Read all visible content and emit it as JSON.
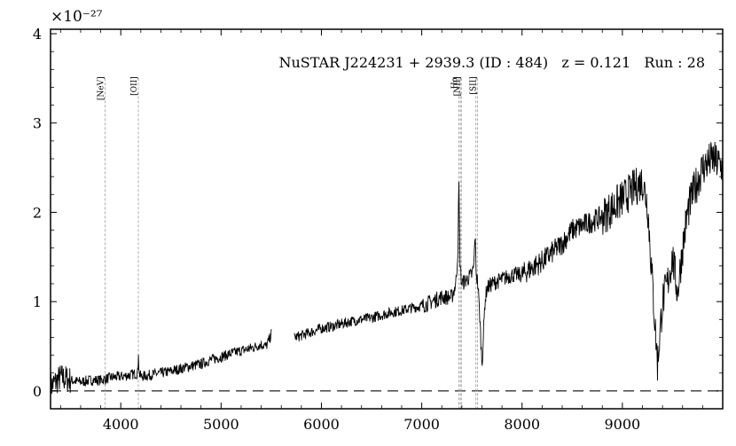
{
  "chart_data": {
    "type": "line",
    "title": "NuSTAR J224231 + 2939.3 (ID : 484)   z = 0.121   Run : 28",
    "xlabel": "",
    "ylabel": "",
    "y_scale_label": "×10⁻²⁷",
    "xlim": [
      3300,
      10000
    ],
    "ylim": [
      -0.2,
      4.05
    ],
    "x_ticks": [
      4000,
      5000,
      6000,
      7000,
      8000,
      9000
    ],
    "y_ticks": [
      0,
      1,
      2,
      3,
      4
    ],
    "grid": false,
    "zero_line": 0,
    "gap": [
      5500,
      5730
    ],
    "emission_lines": [
      {
        "label": "[NeV]",
        "x": 3843
      },
      {
        "label": "[OII]",
        "x": 4175
      },
      {
        "label": "Hα",
        "x": 7370
      },
      {
        "label": "",
        "x": 7385
      },
      {
        "label": "[NII]",
        "x": 7395
      },
      {
        "label": "",
        "x": 7540
      },
      {
        "label": "[SII]",
        "x": 7555
      }
    ],
    "series": [
      {
        "x": [
          3300,
          3400,
          3500,
          3600,
          3700,
          3800,
          3900,
          4000,
          4100,
          4170,
          4176,
          4182,
          4200,
          4300,
          4400,
          4500,
          4600,
          4700,
          4800,
          4900,
          5000,
          5100,
          5200,
          5300,
          5400,
          5450,
          5490,
          5500,
          5730,
          5800,
          5900,
          6000,
          6100,
          6200,
          6300,
          6400,
          6500,
          6600,
          6700,
          6800,
          6900,
          7000,
          7100,
          7200,
          7300,
          7340,
          7360,
          7370,
          7380,
          7390,
          7400,
          7450,
          7500,
          7520,
          7530,
          7545,
          7560,
          7580,
          7600,
          7610,
          7630,
          7650,
          7700,
          7800,
          7900,
          8000,
          8100,
          8200,
          8300,
          8400,
          8500,
          8600,
          8700,
          8800,
          8900,
          9000,
          9100,
          9200,
          9250,
          9300,
          9350,
          9400,
          9450,
          9500,
          9550,
          9600,
          9650,
          9700,
          9800,
          9900,
          10000
        ],
        "values": [
          0.05,
          0.15,
          0.12,
          0.1,
          0.12,
          0.12,
          0.15,
          0.16,
          0.18,
          0.2,
          0.45,
          0.2,
          0.16,
          0.18,
          0.2,
          0.22,
          0.25,
          0.28,
          0.3,
          0.35,
          0.38,
          0.42,
          0.45,
          0.48,
          0.52,
          0.5,
          0.6,
          0.65,
          0.6,
          0.62,
          0.66,
          0.7,
          0.72,
          0.75,
          0.78,
          0.8,
          0.82,
          0.85,
          0.88,
          0.9,
          0.93,
          0.95,
          1.0,
          1.05,
          1.05,
          1.2,
          1.55,
          2.3,
          1.5,
          1.3,
          1.2,
          1.25,
          1.3,
          1.4,
          1.75,
          1.3,
          1.2,
          0.8,
          0.3,
          0.5,
          1.0,
          1.15,
          1.2,
          1.25,
          1.3,
          1.3,
          1.38,
          1.45,
          1.55,
          1.65,
          1.8,
          1.85,
          1.9,
          1.95,
          2.05,
          2.15,
          2.25,
          2.35,
          2.1,
          1.2,
          0.3,
          1.0,
          1.2,
          1.5,
          1.1,
          1.6,
          2.0,
          2.2,
          2.5,
          2.6,
          2.5
        ]
      }
    ]
  }
}
